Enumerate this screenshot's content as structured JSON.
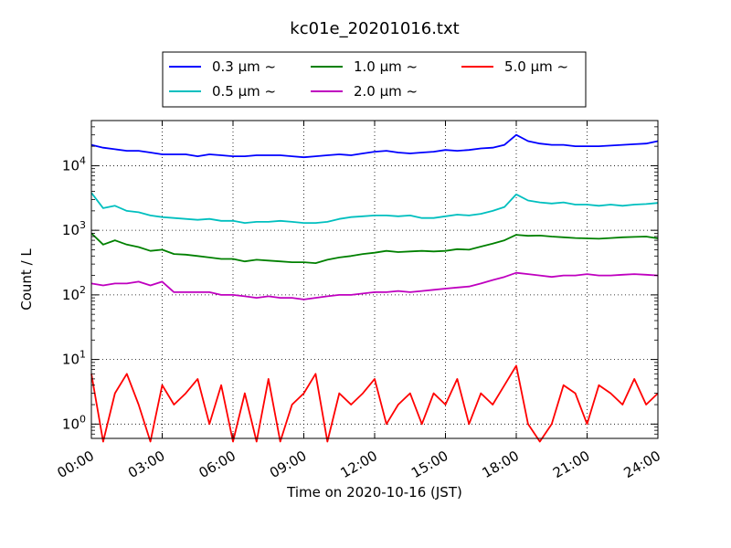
{
  "chart_data": {
    "type": "line",
    "title": "kc01e_20201016.txt",
    "xlabel": "Time on 2020-10-16 (JST)",
    "ylabel": "Count / L",
    "yscale": "log",
    "xlim": [
      "00:00",
      "24:00"
    ],
    "ylim": [
      0.6,
      50000
    ],
    "x_ticks": [
      "00:00",
      "03:00",
      "06:00",
      "09:00",
      "12:00",
      "15:00",
      "18:00",
      "21:00",
      "24:00"
    ],
    "y_ticks": [
      "10^0",
      "10^1",
      "10^2",
      "10^3",
      "10^4"
    ],
    "grid": true,
    "legend_position": "top-center",
    "series": [
      {
        "name": "0.3 µm ~",
        "color": "#0000ff",
        "x": [
          "00:00",
          "00:30",
          "01:00",
          "01:30",
          "02:00",
          "02:30",
          "03:00",
          "03:30",
          "04:00",
          "04:30",
          "05:00",
          "05:30",
          "06:00",
          "06:30",
          "07:00",
          "07:30",
          "08:00",
          "08:30",
          "09:00",
          "09:30",
          "10:00",
          "10:30",
          "11:00",
          "11:30",
          "12:00",
          "12:30",
          "13:00",
          "13:30",
          "14:00",
          "14:30",
          "15:00",
          "15:30",
          "16:00",
          "16:30",
          "17:00",
          "17:30",
          "18:00",
          "18:30",
          "19:00",
          "19:30",
          "20:00",
          "20:30",
          "21:00",
          "21:30",
          "22:00",
          "22:30",
          "23:00",
          "23:30",
          "24:00"
        ],
        "values": [
          21000,
          19000,
          18000,
          17000,
          17000,
          16000,
          15000,
          15000,
          15000,
          14000,
          15000,
          14500,
          14000,
          14000,
          14500,
          14500,
          14500,
          14000,
          13500,
          14000,
          14500,
          15000,
          14500,
          15500,
          16500,
          17000,
          16000,
          15500,
          16000,
          16500,
          17500,
          17000,
          17500,
          18500,
          19000,
          21000,
          30000,
          24000,
          22000,
          21000,
          21000,
          20000,
          20000,
          20000,
          20500,
          21000,
          21500,
          22000,
          24000
        ]
      },
      {
        "name": "0.5 µm ~",
        "color": "#00bfbf",
        "x": [
          "00:00",
          "00:30",
          "01:00",
          "01:30",
          "02:00",
          "02:30",
          "03:00",
          "03:30",
          "04:00",
          "04:30",
          "05:00",
          "05:30",
          "06:00",
          "06:30",
          "07:00",
          "07:30",
          "08:00",
          "08:30",
          "09:00",
          "09:30",
          "10:00",
          "10:30",
          "11:00",
          "11:30",
          "12:00",
          "12:30",
          "13:00",
          "13:30",
          "14:00",
          "14:30",
          "15:00",
          "15:30",
          "16:00",
          "16:30",
          "17:00",
          "17:30",
          "18:00",
          "18:30",
          "19:00",
          "19:30",
          "20:00",
          "20:30",
          "21:00",
          "21:30",
          "22:00",
          "22:30",
          "23:00",
          "23:30",
          "24:00"
        ],
        "values": [
          3800,
          2200,
          2400,
          2000,
          1900,
          1700,
          1600,
          1550,
          1500,
          1450,
          1500,
          1400,
          1400,
          1300,
          1350,
          1350,
          1400,
          1350,
          1300,
          1300,
          1350,
          1500,
          1600,
          1650,
          1700,
          1700,
          1650,
          1700,
          1550,
          1550,
          1650,
          1750,
          1700,
          1800,
          2000,
          2300,
          3600,
          2900,
          2700,
          2600,
          2700,
          2500,
          2500,
          2400,
          2500,
          2400,
          2500,
          2550,
          2650
        ]
      },
      {
        "name": "1.0 µm ~",
        "color": "#008000",
        "x": [
          "00:00",
          "00:30",
          "01:00",
          "01:30",
          "02:00",
          "02:30",
          "03:00",
          "03:30",
          "04:00",
          "04:30",
          "05:00",
          "05:30",
          "06:00",
          "06:30",
          "07:00",
          "07:30",
          "08:00",
          "08:30",
          "09:00",
          "09:30",
          "10:00",
          "10:30",
          "11:00",
          "11:30",
          "12:00",
          "12:30",
          "13:00",
          "13:30",
          "14:00",
          "14:30",
          "15:00",
          "15:30",
          "16:00",
          "16:30",
          "17:00",
          "17:30",
          "18:00",
          "18:30",
          "19:00",
          "19:30",
          "20:00",
          "20:30",
          "21:00",
          "21:30",
          "22:00",
          "22:30",
          "23:00",
          "23:30",
          "24:00"
        ],
        "values": [
          900,
          600,
          700,
          600,
          550,
          480,
          500,
          430,
          420,
          400,
          380,
          360,
          360,
          330,
          350,
          340,
          330,
          320,
          320,
          310,
          350,
          380,
          400,
          430,
          450,
          480,
          460,
          470,
          480,
          470,
          480,
          510,
          500,
          560,
          620,
          700,
          850,
          820,
          830,
          800,
          780,
          760,
          750,
          740,
          760,
          780,
          790,
          800,
          750
        ]
      },
      {
        "name": "2.0 µm ~",
        "color": "#bf00bf",
        "x": [
          "00:00",
          "00:30",
          "01:00",
          "01:30",
          "02:00",
          "02:30",
          "03:00",
          "03:30",
          "04:00",
          "04:30",
          "05:00",
          "05:30",
          "06:00",
          "06:30",
          "07:00",
          "07:30",
          "08:00",
          "08:30",
          "09:00",
          "09:30",
          "10:00",
          "10:30",
          "11:00",
          "11:30",
          "12:00",
          "12:30",
          "13:00",
          "13:30",
          "14:00",
          "14:30",
          "15:00",
          "15:30",
          "16:00",
          "16:30",
          "17:00",
          "17:30",
          "18:00",
          "18:30",
          "19:00",
          "19:30",
          "20:00",
          "20:30",
          "21:00",
          "21:30",
          "22:00",
          "22:30",
          "23:00",
          "23:30",
          "24:00"
        ],
        "values": [
          150,
          140,
          150,
          150,
          160,
          140,
          160,
          110,
          110,
          110,
          110,
          100,
          100,
          95,
          90,
          95,
          90,
          90,
          85,
          90,
          95,
          100,
          100,
          105,
          110,
          110,
          115,
          110,
          115,
          120,
          125,
          130,
          135,
          150,
          170,
          190,
          220,
          210,
          200,
          190,
          200,
          200,
          210,
          200,
          200,
          205,
          210,
          205,
          200
        ]
      },
      {
        "name": "5.0 µm ~",
        "color": "#ff0000",
        "x": [
          "00:00",
          "00:30",
          "01:00",
          "01:30",
          "02:00",
          "02:30",
          "03:00",
          "03:30",
          "04:00",
          "04:30",
          "05:00",
          "05:30",
          "06:00",
          "06:30",
          "07:00",
          "07:30",
          "08:00",
          "08:30",
          "09:00",
          "09:30",
          "10:00",
          "10:30",
          "11:00",
          "11:30",
          "12:00",
          "12:30",
          "13:00",
          "13:30",
          "14:00",
          "14:30",
          "15:00",
          "15:30",
          "16:00",
          "16:30",
          "17:00",
          "17:30",
          "18:00",
          "18:30",
          "19:00",
          "19:30",
          "20:00",
          "20:30",
          "21:00",
          "21:30",
          "22:00",
          "22:30",
          "23:00",
          "23:30",
          "24:00"
        ],
        "values": [
          6,
          0.5,
          3,
          6,
          2,
          0.5,
          4,
          2,
          3,
          5,
          1,
          4,
          0.5,
          3,
          0.5,
          5,
          0.5,
          2,
          3,
          6,
          0.5,
          3,
          2,
          3,
          5,
          1,
          2,
          3,
          1,
          3,
          2,
          5,
          1,
          3,
          2,
          4,
          8,
          1,
          0.5,
          1,
          4,
          3,
          1,
          4,
          3,
          2,
          5,
          2,
          3
        ]
      }
    ]
  }
}
